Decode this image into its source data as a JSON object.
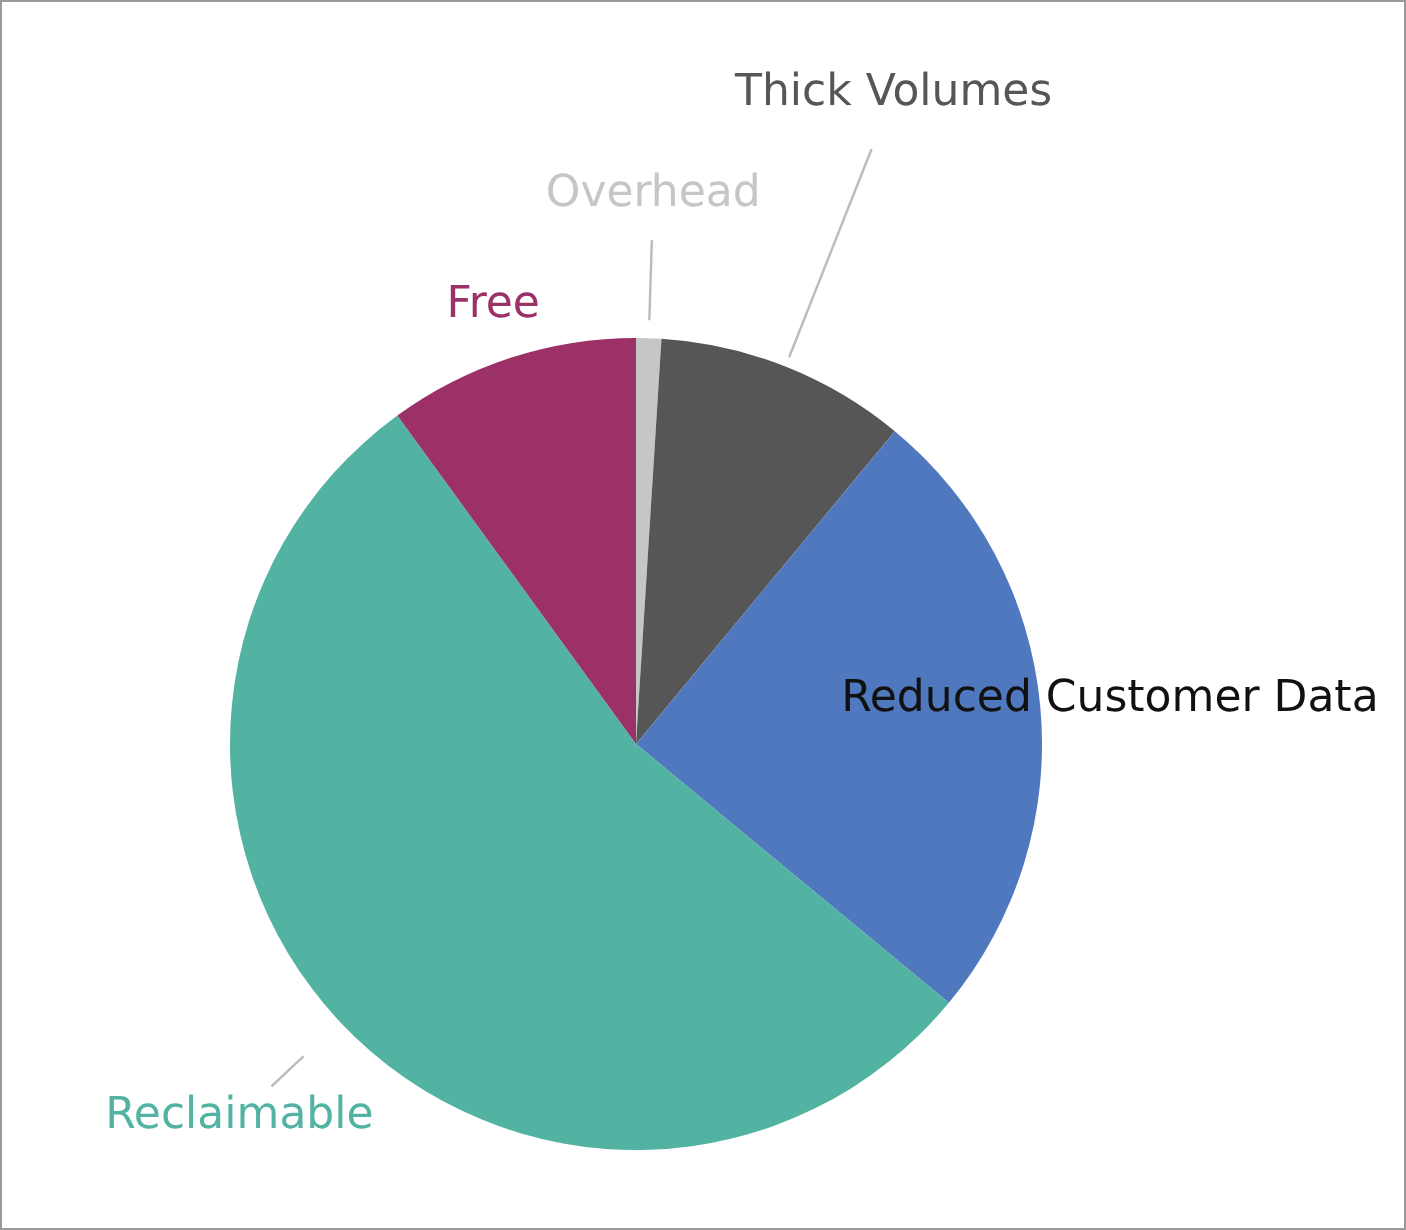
{
  "chart_data": {
    "type": "pie",
    "categories": [
      "Overhead",
      "Thick Volumes",
      "Reduced Customer Data",
      "Reclaimable",
      "Free"
    ],
    "values": [
      1,
      10,
      25,
      54,
      10
    ],
    "colors": [
      "#c6c6c8",
      "#575657",
      "#4f78be",
      "#52b3a2",
      "#9b3166"
    ]
  }
}
